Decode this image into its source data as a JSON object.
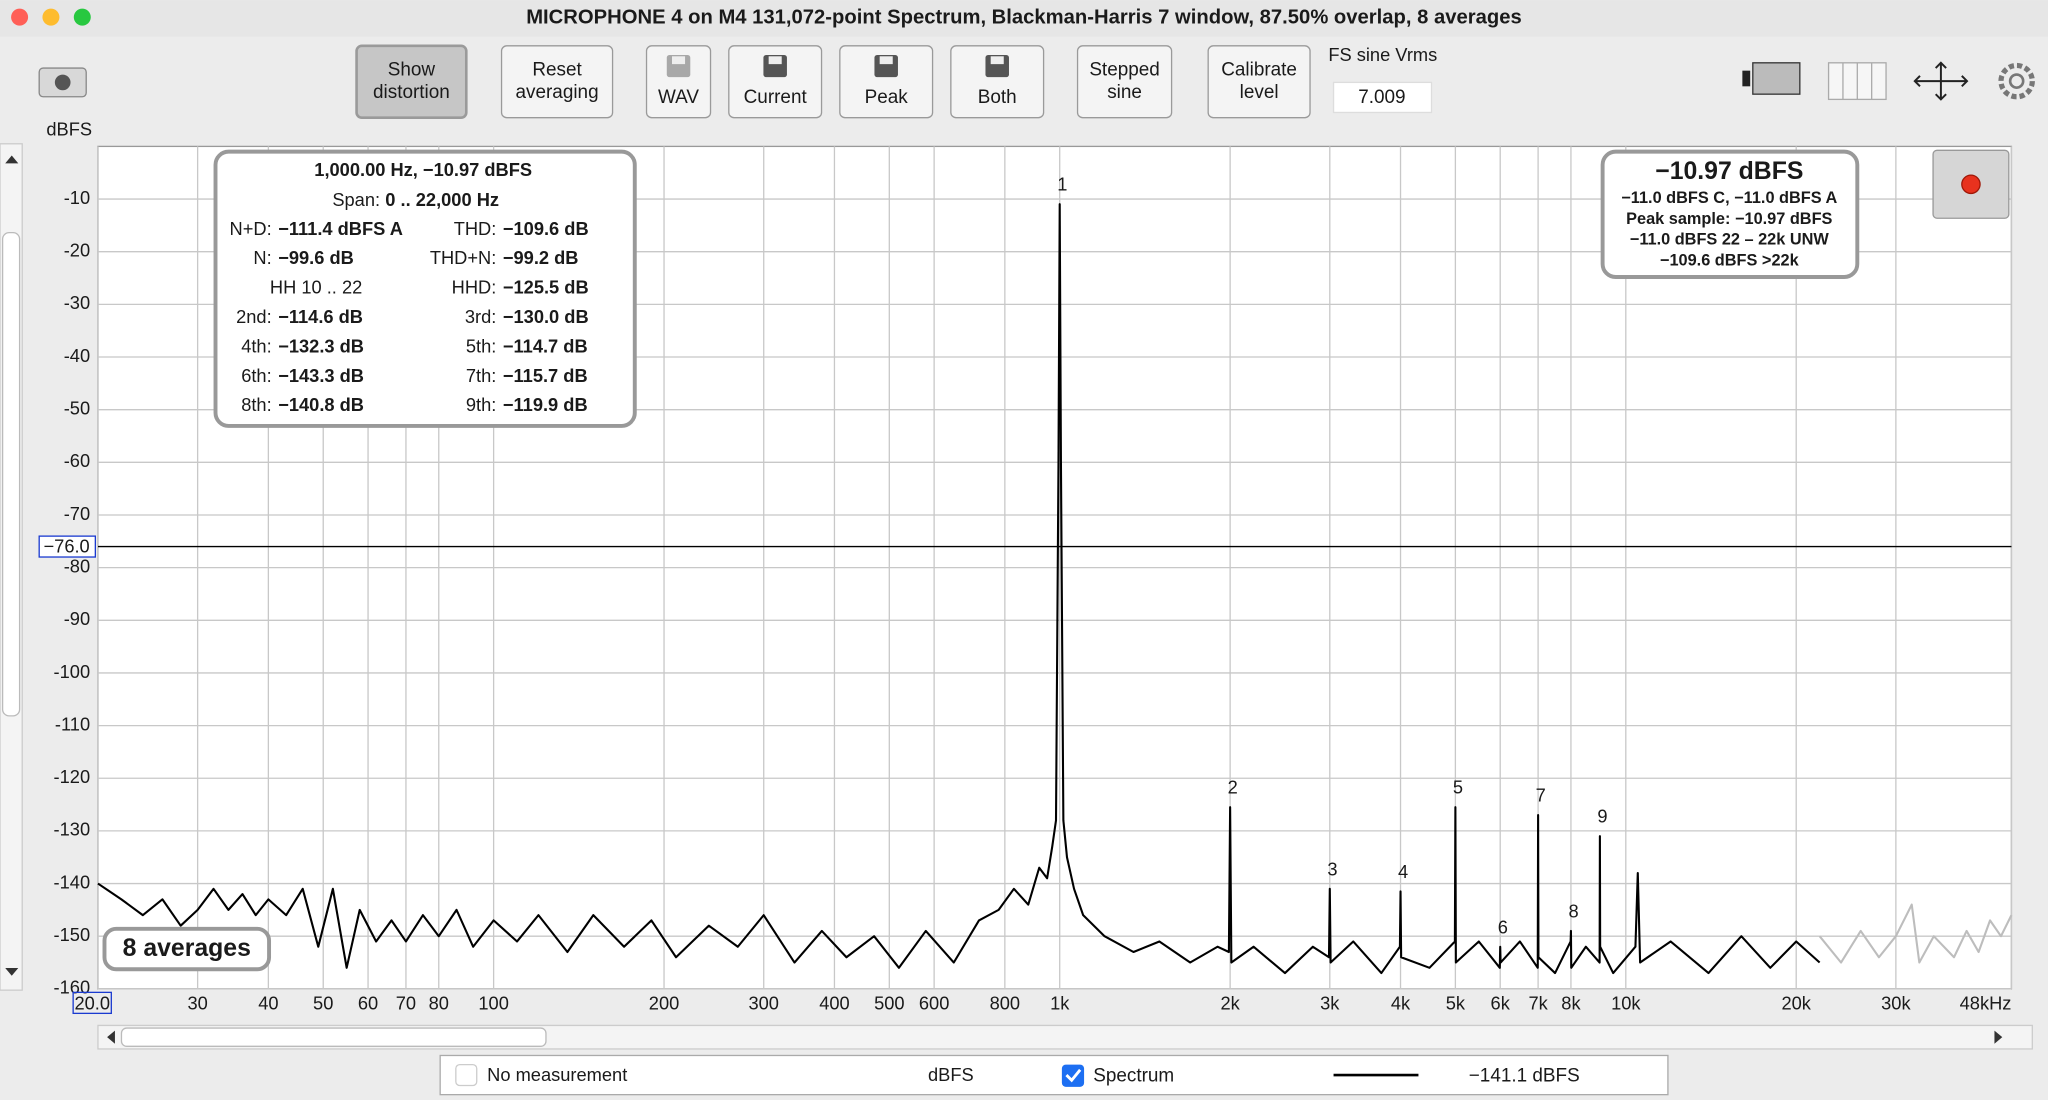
{
  "window_title": "MICROPHONE 4 on M4 131,072-point Spectrum, Blackman-Harris 7 window, 87.50% overlap, 8 averages",
  "toolbar": {
    "buttons": [
      {
        "lines": [
          "Show",
          "distortion"
        ],
        "state": "pressed"
      },
      {
        "lines": [
          "Reset",
          "averaging"
        ],
        "state": "normal"
      },
      {
        "lines": [
          "WAV"
        ],
        "icon": "folder",
        "state": "disabled"
      },
      {
        "lines": [
          "Current"
        ],
        "icon": "disk",
        "state": "normal"
      },
      {
        "lines": [
          "Peak"
        ],
        "icon": "disk",
        "state": "normal"
      },
      {
        "lines": [
          "Both"
        ],
        "icon": "disk",
        "state": "normal"
      },
      {
        "lines": [
          "Stepped",
          "sine"
        ],
        "state": "normal"
      },
      {
        "lines": [
          "Calibrate",
          "level"
        ],
        "state": "normal"
      }
    ],
    "fs_label": "FS sine Vrms",
    "fs_value": "7.009"
  },
  "chart_data": {
    "type": "line",
    "x_scale": "log",
    "y_axis_label": "dBFS",
    "grid": true,
    "xlim": [
      20,
      48000
    ],
    "ylim": [
      -160,
      0
    ],
    "xticks": [
      {
        "value": 20,
        "label": "20.0"
      },
      30,
      40,
      50,
      60,
      70,
      80,
      100,
      200,
      300,
      400,
      500,
      600,
      800,
      {
        "value": 1000,
        "label": "1k"
      },
      {
        "value": 2000,
        "label": "2k"
      },
      {
        "value": 3000,
        "label": "3k"
      },
      {
        "value": 4000,
        "label": "4k"
      },
      {
        "value": 5000,
        "label": "5k"
      },
      {
        "value": 6000,
        "label": "6k"
      },
      {
        "value": 7000,
        "label": "7k"
      },
      {
        "value": 8000,
        "label": "8k"
      },
      {
        "value": 10000,
        "label": "10k"
      },
      {
        "value": 20000,
        "label": "20k"
      },
      {
        "value": 30000,
        "label": "30k"
      },
      {
        "value": 48000,
        "label": "48kHz"
      }
    ],
    "yticks": [
      -10,
      -20,
      -30,
      -40,
      -50,
      -60,
      -70,
      -80,
      -90,
      -100,
      -110,
      -120,
      -130,
      -140,
      -150,
      -160
    ],
    "cursor": {
      "value": -76,
      "label": "−76.0"
    },
    "series": [
      {
        "name": "Spectrum",
        "color": "#000000",
        "x": [
          20,
          22,
          24,
          26,
          28,
          30,
          32,
          34,
          36,
          38,
          40,
          43,
          46,
          49,
          52,
          55,
          58,
          62,
          66,
          70,
          75,
          80,
          86,
          92,
          100,
          110,
          120,
          135,
          150,
          170,
          190,
          210,
          240,
          270,
          300,
          340,
          380,
          420,
          470,
          520,
          580,
          650,
          720,
          780,
          830,
          880,
          920,
          950,
          970,
          985,
          995,
          1000,
          1005,
          1015,
          1030,
          1060,
          1100,
          1200,
          1350,
          1500,
          1700,
          1900,
          1990,
          2000,
          2010,
          2200,
          2500,
          2800,
          2990,
          3000,
          3010,
          3300,
          3700,
          3990,
          4000,
          4010,
          4500,
          4990,
          5000,
          5010,
          5500,
          5990,
          6000,
          6010,
          6500,
          6990,
          7000,
          7010,
          7500,
          7990,
          8000,
          8010,
          8500,
          8990,
          9000,
          9010,
          9500,
          10400,
          10500,
          10600,
          12000,
          14000,
          16000,
          18000,
          20000,
          22000
        ],
        "values": [
          -140,
          -143,
          -146,
          -143,
          -148,
          -145,
          -141,
          -145,
          -142,
          -146,
          -143,
          -146,
          -141,
          -152,
          -141,
          -156,
          -145,
          -151,
          -147,
          -151,
          -146,
          -150,
          -145,
          -152,
          -147,
          -151,
          -146,
          -153,
          -146,
          -152,
          -147,
          -154,
          -148,
          -152,
          -146,
          -155,
          -149,
          -154,
          -150,
          -156,
          -149,
          -155,
          -147,
          -145,
          -141,
          -144,
          -137,
          -139,
          -133,
          -128,
          -60,
          -10.97,
          -60,
          -128,
          -135,
          -141,
          -146,
          -150,
          -153,
          -151,
          -155,
          -152,
          -153,
          -125.5,
          -155,
          -152,
          -157,
          -152,
          -154,
          -141,
          -155,
          -151,
          -157,
          -152,
          -141.5,
          -154,
          -156,
          -151,
          -125.5,
          -155,
          -151,
          -156,
          -152,
          -155,
          -151,
          -156,
          -127,
          -154,
          -157,
          -151,
          -149,
          -156,
          -152,
          -155,
          -131,
          -152,
          -157,
          -152,
          -138,
          -155,
          -151,
          -157,
          -150,
          -156,
          -151,
          -155
        ]
      },
      {
        "color": "#bdbdbd",
        "x": [
          22000,
          24000,
          26000,
          28000,
          30000,
          32000,
          33000,
          35000,
          38000,
          40000,
          42000,
          44000,
          46000,
          48000
        ],
        "values": [
          -150,
          -155,
          -149,
          -154,
          -150,
          -144,
          -155,
          -150,
          -154,
          -149,
          -153,
          -147,
          -150,
          -146
        ]
      }
    ],
    "harmonic_labels": [
      {
        "text": "1",
        "x": 1000
      },
      {
        "text": "2",
        "x": 2000
      },
      {
        "text": "3",
        "x": 3000
      },
      {
        "text": "4",
        "x": 4000
      },
      {
        "text": "5",
        "x": 5000
      },
      {
        "text": "6",
        "x": 6000
      },
      {
        "text": "7",
        "x": 7000
      },
      {
        "text": "8",
        "x": 8000
      },
      {
        "text": "9",
        "x": 9000
      }
    ]
  },
  "distortion_box": {
    "heading": "1,000.00 Hz, −10.97 dBFS",
    "span_label": "Span:",
    "span_value": "0 .. 22,000 Hz",
    "rows": [
      {
        "left": [
          "N+D:",
          "−111.4 dBFS A"
        ],
        "right": [
          "THD:",
          "−109.6 dB"
        ]
      },
      {
        "left": [
          "N:",
          "−99.6 dB"
        ],
        "right": [
          "THD+N:",
          "−99.2 dB"
        ]
      },
      {
        "left": [
          "HH 10 .. 22"
        ],
        "right": [
          "HHD:",
          "−125.5 dB"
        ]
      },
      {
        "left": [
          "2nd:",
          "−114.6 dB"
        ],
        "right": [
          "3rd:",
          "−130.0 dB"
        ]
      },
      {
        "left": [
          "4th:",
          "−132.3 dB"
        ],
        "right": [
          "5th:",
          "−114.7 dB"
        ]
      },
      {
        "left": [
          "6th:",
          "−143.3 dB"
        ],
        "right": [
          "7th:",
          "−115.7 dB"
        ]
      },
      {
        "left": [
          "8th:",
          "−140.8 dB"
        ],
        "right": [
          "9th:",
          "−119.9 dB"
        ]
      }
    ]
  },
  "level_box": {
    "main": "−10.97 dBFS",
    "lines": [
      "−11.0 dBFS C, −11.0 dBFS A",
      "Peak sample: −10.97 dBFS",
      "−11.0 dBFS 22 – 22k UNW",
      "−109.6 dBFS >22k"
    ]
  },
  "averages_badge": "8 averages",
  "legend_bar": {
    "left_name": "No measurement",
    "left_unit": "dBFS",
    "right_reading": "−141.1 dBFS"
  }
}
